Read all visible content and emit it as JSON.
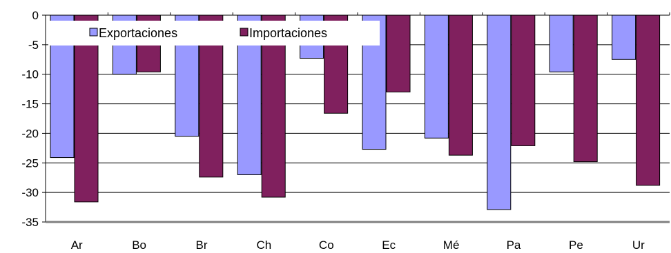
{
  "chart_data": {
    "type": "bar",
    "categories": [
      "Ar",
      "Bo",
      "Br",
      "Ch",
      "Co",
      "Ec",
      "Mé",
      "Pa",
      "Pe",
      "Ur"
    ],
    "series": [
      {
        "name": "Exportaciones",
        "color": "#9999ff",
        "values": [
          -24.1,
          -10.0,
          -20.5,
          -27.0,
          -7.3,
          -22.7,
          -20.8,
          -32.9,
          -9.6,
          -7.5
        ]
      },
      {
        "name": "Importaciones",
        "color": "#80205e",
        "values": [
          -31.6,
          -9.6,
          -27.4,
          -30.8,
          -16.6,
          -13.0,
          -23.7,
          -22.1,
          -24.8,
          -28.8
        ]
      }
    ],
    "ylim": [
      -35,
      0
    ],
    "yticks": [
      0,
      -5,
      -10,
      -15,
      -20,
      -25,
      -30,
      -35
    ],
    "grid": true,
    "legend": "top-left",
    "title": "",
    "xlabel": "",
    "ylabel": ""
  }
}
